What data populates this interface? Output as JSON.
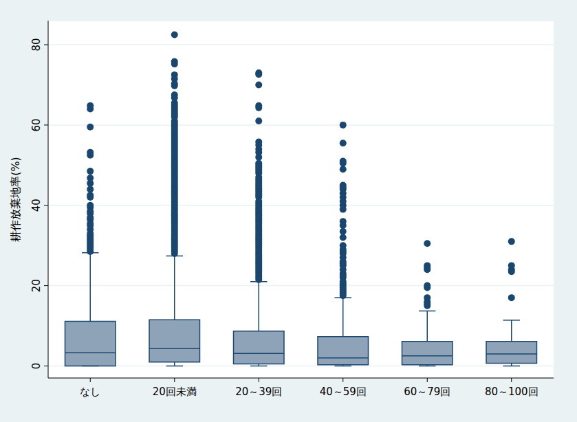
{
  "chart_data": {
    "type": "box",
    "ylabel": "耕作放棄地率(%)",
    "categories": [
      "なし",
      "20回未満",
      "20～39回",
      "40～59回",
      "60～79回",
      "80～100回"
    ],
    "ylim": [
      -3,
      86
    ],
    "yticks": [
      0,
      20,
      40,
      60,
      80
    ],
    "grid": true,
    "color": "#8fa3b8",
    "boxes": [
      {
        "whisker_low": 0,
        "q1": 0,
        "median": 3.3,
        "q3": 11.1,
        "whisker_high": 28.2,
        "outliers": [
          64.8,
          64,
          59.5,
          53.2,
          52.5,
          48.5,
          46.8,
          45.5,
          44,
          42.5,
          42,
          40,
          39.5,
          38.5,
          38,
          37,
          36.5,
          35.5,
          35,
          34,
          33,
          32.5,
          32,
          31.5,
          31,
          30.5,
          30,
          29.5,
          29,
          28.5
        ]
      },
      {
        "whisker_low": 0,
        "q1": 1,
        "median": 4.3,
        "q3": 11.5,
        "whisker_high": 27.4,
        "outliers": [
          82.5,
          75.8,
          75.2,
          72.5,
          71.5,
          70.3,
          69.8,
          67.5,
          66.8,
          65.5,
          65,
          64.5,
          64,
          63.5,
          63,
          62.5,
          62,
          61,
          60.5,
          60,
          59.5,
          59,
          58.5,
          58,
          57.5,
          57,
          56.5,
          56,
          55.5,
          55,
          54.5,
          54,
          53.5,
          53,
          52.5,
          52,
          51.5,
          51,
          50.5,
          50,
          49.5,
          49,
          48.5,
          48,
          47.5,
          47,
          46.5,
          46,
          45.5,
          45,
          44.5,
          44,
          43.5,
          43,
          42.5,
          42,
          41.5,
          41,
          40.5,
          40,
          39.5,
          39,
          38.5,
          38,
          37.5,
          37,
          36.5,
          36,
          35.5,
          35,
          34.5,
          34,
          33.5,
          33,
          32.5,
          32,
          31.5,
          31,
          30.5,
          30,
          29.5,
          29,
          28.5,
          28
        ]
      },
      {
        "whisker_low": 0,
        "q1": 0.5,
        "median": 3.1,
        "q3": 8.7,
        "whisker_high": 21,
        "outliers": [
          73,
          72.6,
          70,
          64.8,
          64.3,
          61,
          55.8,
          55,
          54,
          53.2,
          52,
          50.5,
          50,
          49.5,
          49,
          48.5,
          48,
          47,
          46.5,
          46,
          45.5,
          45,
          44.5,
          44,
          43.5,
          43,
          42.5,
          42,
          41,
          40.5,
          40,
          39.5,
          39,
          38.5,
          38,
          37.5,
          37,
          36.5,
          36,
          35.5,
          35,
          34.5,
          34,
          33.5,
          33,
          32.5,
          32,
          31.5,
          31,
          30.5,
          30,
          29.5,
          29,
          28.5,
          28,
          27.5,
          27,
          26.5,
          26,
          25.5,
          25,
          24.5,
          24,
          23.5,
          23,
          22.5,
          22,
          21.5
        ]
      },
      {
        "whisker_low": 0,
        "q1": 0.3,
        "median": 2,
        "q3": 7.3,
        "whisker_high": 17,
        "outliers": [
          60,
          55.5,
          51,
          50.5,
          49,
          45,
          44.5,
          44,
          43,
          42,
          41,
          40,
          39,
          36,
          35,
          33.5,
          32,
          30,
          29,
          28.5,
          28,
          27,
          26,
          25.5,
          25,
          24,
          23,
          22.5,
          22,
          21,
          20.5,
          20,
          19.5,
          19,
          18.5,
          18,
          17.5
        ]
      },
      {
        "whisker_low": 0,
        "q1": 0.3,
        "median": 2.5,
        "q3": 6.1,
        "whisker_high": 13.7,
        "outliers": [
          30.5,
          25,
          24.5,
          24,
          20,
          19.5,
          17,
          16,
          15.5,
          15
        ]
      },
      {
        "whisker_low": 0,
        "q1": 0.7,
        "median": 3,
        "q3": 6.1,
        "whisker_high": 11.4,
        "outliers": [
          31,
          25,
          24,
          23.5,
          17
        ]
      }
    ]
  }
}
